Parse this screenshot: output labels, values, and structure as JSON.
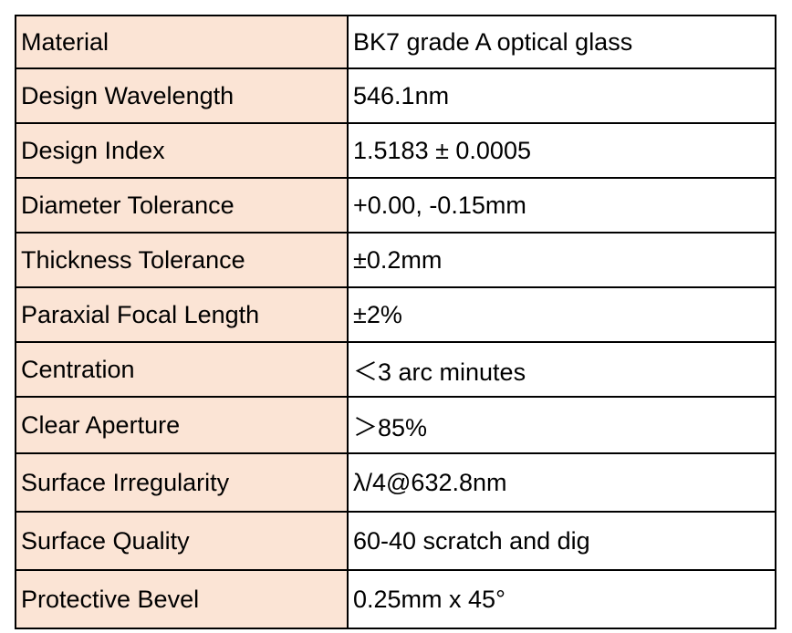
{
  "table": {
    "rows": [
      {
        "label": "Material",
        "value": "BK7 grade A optical glass"
      },
      {
        "label": "Design Wavelength",
        "value": "546.1nm"
      },
      {
        "label": "Design Index",
        "value": "1.5183 ± 0.0005"
      },
      {
        "label": "Diameter Tolerance",
        "value": "+0.00, -0.15mm"
      },
      {
        "label": "Thickness Tolerance",
        "value": "±0.2mm"
      },
      {
        "label": "Paraxial Focal Length",
        "value": "±2%"
      },
      {
        "label": "Centration",
        "value": "＜3 arc minutes"
      },
      {
        "label": "Clear Aperture",
        "value": "＞85%"
      },
      {
        "label": "Surface Irregularity",
        "value": "λ/4@632.8nm"
      },
      {
        "label": "Surface Quality",
        "value": "60-40 scratch and dig"
      },
      {
        "label": "Protective Bevel",
        "value": "0.25mm x 45°"
      }
    ]
  },
  "colors": {
    "label_background": "#fbe4d5",
    "value_background": "#ffffff",
    "border": "#000000"
  }
}
